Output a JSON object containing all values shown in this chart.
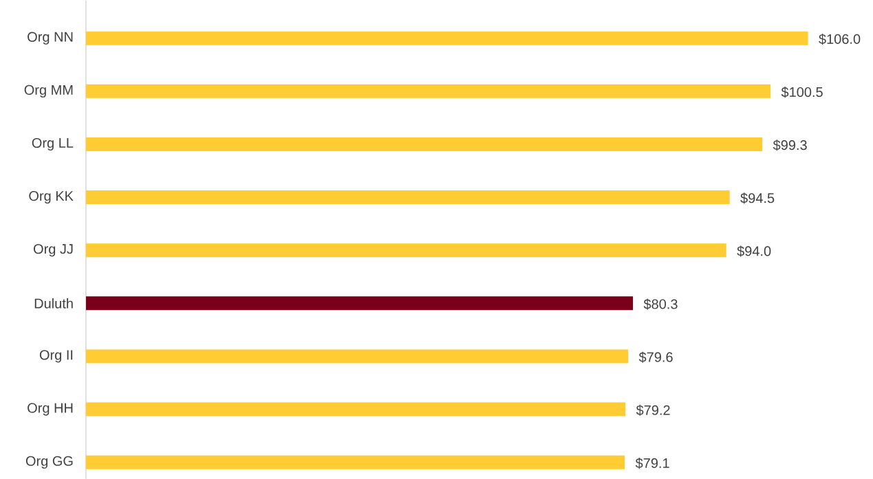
{
  "chart_data": {
    "type": "bar",
    "orientation": "horizontal",
    "categories": [
      "Org  NN",
      "Org  MM",
      "Org  LL",
      "Org  KK",
      "Org  JJ",
      "Duluth",
      "Org  II",
      "Org  HH",
      "Org  GG"
    ],
    "values": [
      106.0,
      100.5,
      99.3,
      94.5,
      94.0,
      80.3,
      79.6,
      79.2,
      79.1
    ],
    "colors": [
      "#ffcc33",
      "#ffcc33",
      "#ffcc33",
      "#ffcc33",
      "#ffcc33",
      "#7a0019",
      "#ffcc33",
      "#ffcc33",
      "#ffcc33"
    ],
    "value_labels": [
      "$106.0",
      "$100.5",
      "$99.3",
      "$94.5",
      "$94.0",
      "$80.3",
      "$79.6",
      "$79.2",
      "$79.1"
    ]
  }
}
